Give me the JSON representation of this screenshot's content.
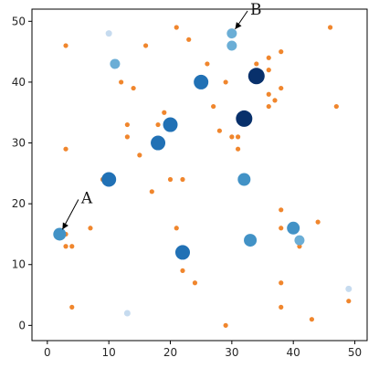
{
  "chart_data": {
    "type": "scatter",
    "title": "",
    "xlabel": "",
    "ylabel": "",
    "xlim": [
      -2.5,
      52
    ],
    "ylim": [
      -2.5,
      52
    ],
    "xticks": [
      0,
      10,
      20,
      30,
      40,
      50
    ],
    "yticks": [
      0,
      10,
      20,
      30,
      40,
      50
    ],
    "grid": false,
    "colors": {
      "small_points": "#f0862d",
      "blue_scale": [
        "#c6dbef",
        "#6baed6",
        "#4292c6",
        "#2171b5",
        "#08306b"
      ]
    },
    "series": [
      {
        "points": [
          {
            "x": 3,
            "y": 46
          },
          {
            "x": 3,
            "y": 29
          },
          {
            "x": 3,
            "y": 15
          },
          {
            "x": 3,
            "y": 13
          },
          {
            "x": 4,
            "y": 13
          },
          {
            "x": 4,
            "y": 3
          },
          {
            "x": 7,
            "y": 16
          },
          {
            "x": 9,
            "y": 24
          },
          {
            "x": 12,
            "y": 40
          },
          {
            "x": 13,
            "y": 33
          },
          {
            "x": 13,
            "y": 31
          },
          {
            "x": 14,
            "y": 39
          },
          {
            "x": 15,
            "y": 28
          },
          {
            "x": 16,
            "y": 46
          },
          {
            "x": 17,
            "y": 22
          },
          {
            "x": 18,
            "y": 33
          },
          {
            "x": 19,
            "y": 35
          },
          {
            "x": 20,
            "y": 24
          },
          {
            "x": 21,
            "y": 49
          },
          {
            "x": 21,
            "y": 16
          },
          {
            "x": 22,
            "y": 24
          },
          {
            "x": 22,
            "y": 9
          },
          {
            "x": 23,
            "y": 47
          },
          {
            "x": 24,
            "y": 7
          },
          {
            "x": 26,
            "y": 43
          },
          {
            "x": 27,
            "y": 36
          },
          {
            "x": 28,
            "y": 32
          },
          {
            "x": 29,
            "y": 40
          },
          {
            "x": 29,
            "y": 0
          },
          {
            "x": 30,
            "y": 31
          },
          {
            "x": 31,
            "y": 31
          },
          {
            "x": 31,
            "y": 29
          },
          {
            "x": 34,
            "y": 43
          },
          {
            "x": 36,
            "y": 44
          },
          {
            "x": 36,
            "y": 42
          },
          {
            "x": 36,
            "y": 38
          },
          {
            "x": 36,
            "y": 36
          },
          {
            "x": 37,
            "y": 37
          },
          {
            "x": 38,
            "y": 45
          },
          {
            "x": 38,
            "y": 39
          },
          {
            "x": 38,
            "y": 19
          },
          {
            "x": 38,
            "y": 16
          },
          {
            "x": 38,
            "y": 7
          },
          {
            "x": 38,
            "y": 3
          },
          {
            "x": 41,
            "y": 13
          },
          {
            "x": 43,
            "y": 1
          },
          {
            "x": 44,
            "y": 17
          },
          {
            "x": 46,
            "y": 49
          },
          {
            "x": 47,
            "y": 36
          },
          {
            "x": 49,
            "y": 4
          }
        ]
      },
      {
        "points": [
          {
            "x": 2,
            "y": 15,
            "c": 2
          },
          {
            "x": 10,
            "y": 24,
            "c": 3
          },
          {
            "x": 10,
            "y": 48,
            "c": 0
          },
          {
            "x": 11,
            "y": 43,
            "c": 1
          },
          {
            "x": 13,
            "y": 2,
            "c": 0
          },
          {
            "x": 18,
            "y": 30,
            "c": 3
          },
          {
            "x": 20,
            "y": 33,
            "c": 3
          },
          {
            "x": 22,
            "y": 12,
            "c": 3
          },
          {
            "x": 25,
            "y": 40,
            "c": 3
          },
          {
            "x": 30,
            "y": 48,
            "c": 1
          },
          {
            "x": 30,
            "y": 46,
            "c": 1
          },
          {
            "x": 32,
            "y": 34,
            "c": 4
          },
          {
            "x": 32,
            "y": 24,
            "c": 2
          },
          {
            "x": 33,
            "y": 14,
            "c": 2
          },
          {
            "x": 34,
            "y": 41,
            "c": 4
          },
          {
            "x": 40,
            "y": 16,
            "c": 2
          },
          {
            "x": 41,
            "y": 14,
            "c": 1
          },
          {
            "x": 49,
            "y": 6,
            "c": 0
          }
        ]
      }
    ],
    "annotations": [
      {
        "text": "A",
        "point": [
          2,
          15
        ],
        "text_pos": [
          5.5,
          21
        ]
      },
      {
        "text": "B",
        "point": [
          30,
          48
        ],
        "text_pos": [
          33,
          52
        ]
      }
    ]
  }
}
